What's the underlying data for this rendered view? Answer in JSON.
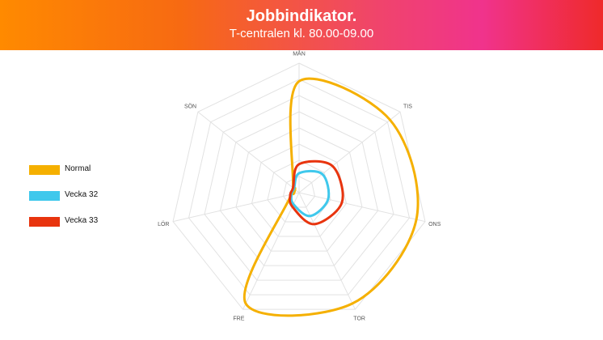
{
  "header": {
    "title": "Jobbindikator.",
    "subtitle": "T-centralen kl. 80.00-09.00"
  },
  "chart_data": {
    "type": "radar",
    "title": "Jobbindikator.",
    "subtitle": "T-centralen kl. 80.00-09.00",
    "axes": [
      "MÅN",
      "TIS",
      "ONS",
      "TOR",
      "FRE",
      "LÖR",
      "SÖN"
    ],
    "rmax": 100,
    "grid_levels": 8,
    "grid": true,
    "legend_position": "left",
    "series": [
      {
        "name": "Normal",
        "values": [
          86,
          90,
          93,
          95,
          95,
          6,
          6
        ],
        "color": "#f5b000"
      },
      {
        "name": "Vecka 32",
        "values": [
          15,
          23,
          23,
          20,
          10,
          6,
          5
        ],
        "color": "#3fc8ec"
      },
      {
        "name": "Vecka 33",
        "values": [
          22,
          33,
          34,
          27,
          12,
          7,
          6
        ],
        "color": "#e8340e"
      }
    ]
  }
}
